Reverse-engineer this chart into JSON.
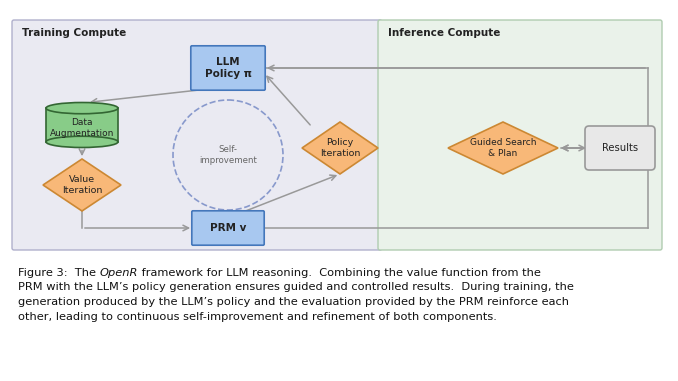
{
  "fig_width": 6.78,
  "fig_height": 3.81,
  "dpi": 100,
  "bg_color": "#ffffff",
  "training_bg": "#eaeaf2",
  "inference_bg": "#eaf2ea",
  "training_border": "#b0b0cc",
  "inference_border": "#b0ccb0",
  "training_label": "Training Compute",
  "inference_label": "Inference Compute",
  "llm_fc": "#a8c8f0",
  "llm_ec": "#4477bb",
  "prm_fc": "#a8c8f0",
  "prm_ec": "#4477bb",
  "cyl_fc": "#88cc88",
  "cyl_ec": "#336633",
  "diamond_fc": "#f8b878",
  "diamond_ec": "#cc8833",
  "results_fc": "#e8e8e8",
  "results_ec": "#999999",
  "arrow_color": "#999999",
  "dashed_color": "#8899cc",
  "self_improve_color": "#888888",
  "font_family": "DejaVu Sans",
  "caption": {
    "prefix": "Figure 3:  The ",
    "italic": "OpenR",
    "suffix": " framework for LLM reasoning.  Combining the value function from the\nPRM with the LLM’s policy generation ensures guided and controlled results.  During training, the\ngeneration produced by the LLM’s policy and the evaluation provided by the PRM reinforce each\nother, leading to continuous self-improvement and refinement of both components.",
    "fontsize": 8.2
  }
}
